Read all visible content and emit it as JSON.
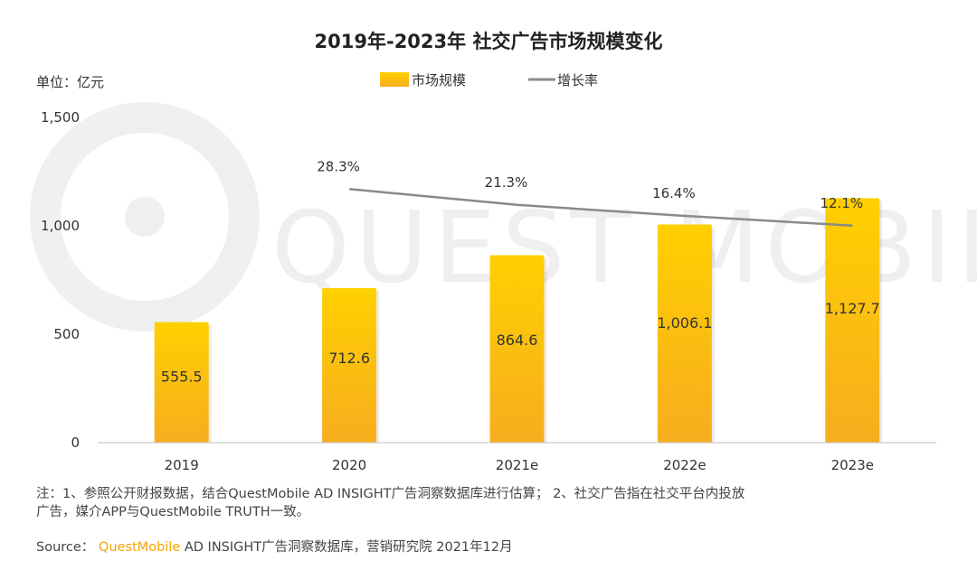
{
  "colors": {
    "bar_top": "#ffd000",
    "bar_bottom": "#f7ad1f",
    "growth_line": "#8a8a8a",
    "brand": "#f5a400",
    "text": "#333333"
  },
  "watermark": "QUEST MOBILE",
  "chart_data": {
    "type": "bar",
    "title": "2019年-2023年 社交广告市场规模变化",
    "unit_label": "单位：亿元",
    "categories": [
      "2019",
      "2020",
      "2021e",
      "2022e",
      "2023e"
    ],
    "ylim": [
      0,
      1500
    ],
    "yticks": [
      {
        "value": 0,
        "label": "0"
      },
      {
        "value": 500,
        "label": "500"
      },
      {
        "value": 1000,
        "label": "1,000"
      },
      {
        "value": 1500,
        "label": "1,500"
      }
    ],
    "series": [
      {
        "name": "市场规模",
        "kind": "bar",
        "values": [
          555.5,
          712.6,
          864.6,
          1006.1,
          1127.7
        ],
        "labels": [
          "555.5",
          "712.6",
          "864.6",
          "1,006.1",
          "1,127.7"
        ]
      },
      {
        "name": "增长率",
        "kind": "line",
        "values": [
          null,
          28.3,
          21.3,
          16.4,
          12.1
        ],
        "labels": [
          "",
          "28.3%",
          "21.3%",
          "16.4%",
          "12.1%"
        ]
      }
    ],
    "legend": "top-center",
    "grid": false
  },
  "notes": {
    "line1": "注：1、参照公开财报数据，结合QuestMobile AD INSIGHT广告洞察数据库进行估算； 2、社交广告指在社交平台内投放",
    "line2": "广告，媒介APP与QuestMobile TRUTH一致。"
  },
  "source": {
    "prefix": "Source：",
    "brand": "QuestMobile",
    "suffix": "AD INSIGHT广告洞察数据库，营销研究院 2021年12月"
  }
}
